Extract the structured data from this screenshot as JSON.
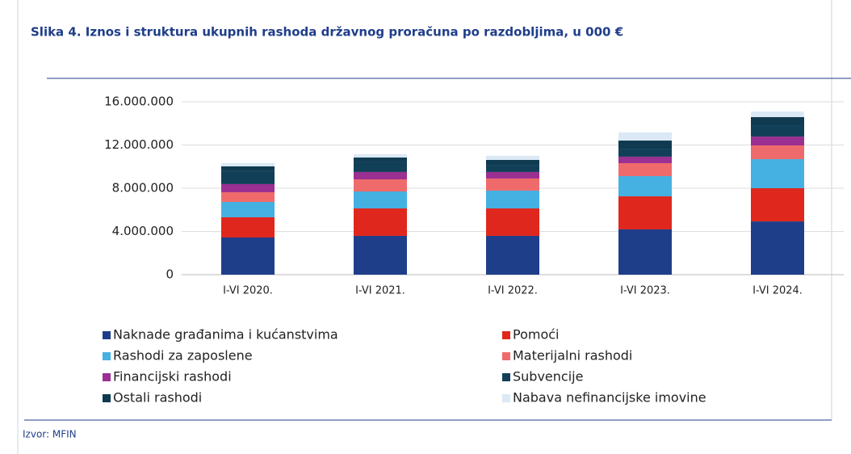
{
  "chart_data": {
    "type": "bar",
    "stacked": true,
    "title": "Slika 4. Iznos i struktura ukupnih rashoda državnog proračuna po razdobljima, u 000 €",
    "source": "Izvor: MFIN",
    "categories": [
      "I-VI 2020.",
      "I-VI 2021.",
      "I-VI 2022.",
      "I-VI 2023.",
      "I-VI 2024."
    ],
    "series": [
      {
        "name": "Naknade građanima i kućanstvima",
        "color": "#1f3e8a",
        "values": [
          3440000,
          3590000,
          3590000,
          4190000,
          4930000
        ]
      },
      {
        "name": "Pomoći",
        "color": "#e0271e",
        "values": [
          1870000,
          2540000,
          2540000,
          3060000,
          3070000
        ]
      },
      {
        "name": "Rashodi za zaposlene",
        "color": "#45b0e2",
        "values": [
          1420000,
          1570000,
          1650000,
          1870000,
          2690000
        ]
      },
      {
        "name": "Materijalni rashodi",
        "color": "#ef6b6b",
        "values": [
          900000,
          1120000,
          1120000,
          1200000,
          1270000
        ]
      },
      {
        "name": "Financijski rashodi",
        "color": "#9b2f92",
        "values": [
          750000,
          680000,
          600000,
          600000,
          820000
        ]
      },
      {
        "name": "Subvencije",
        "color": "#123f58",
        "values": [
          1200000,
          970000,
          600000,
          740000,
          1050000
        ]
      },
      {
        "name": "Ostali rashodi",
        "color": "#0f3a50",
        "values": [
          450000,
          370000,
          520000,
          750000,
          750000
        ]
      },
      {
        "name": "Nabava nefinancijske imovine",
        "color": "#dbe8f5",
        "values": [
          300000,
          300000,
          380000,
          750000,
          520000
        ]
      }
    ],
    "ylim": [
      0,
      16000000
    ],
    "yticks": [
      0,
      {
        "value": 4000000,
        "label": "4.000.000"
      },
      {
        "value": 8000000,
        "label": "8.000.000"
      },
      {
        "value": 12000000,
        "label": "12.000.000"
      },
      {
        "value": 16000000,
        "label": "16.000.000"
      }
    ],
    "grid": true
  }
}
